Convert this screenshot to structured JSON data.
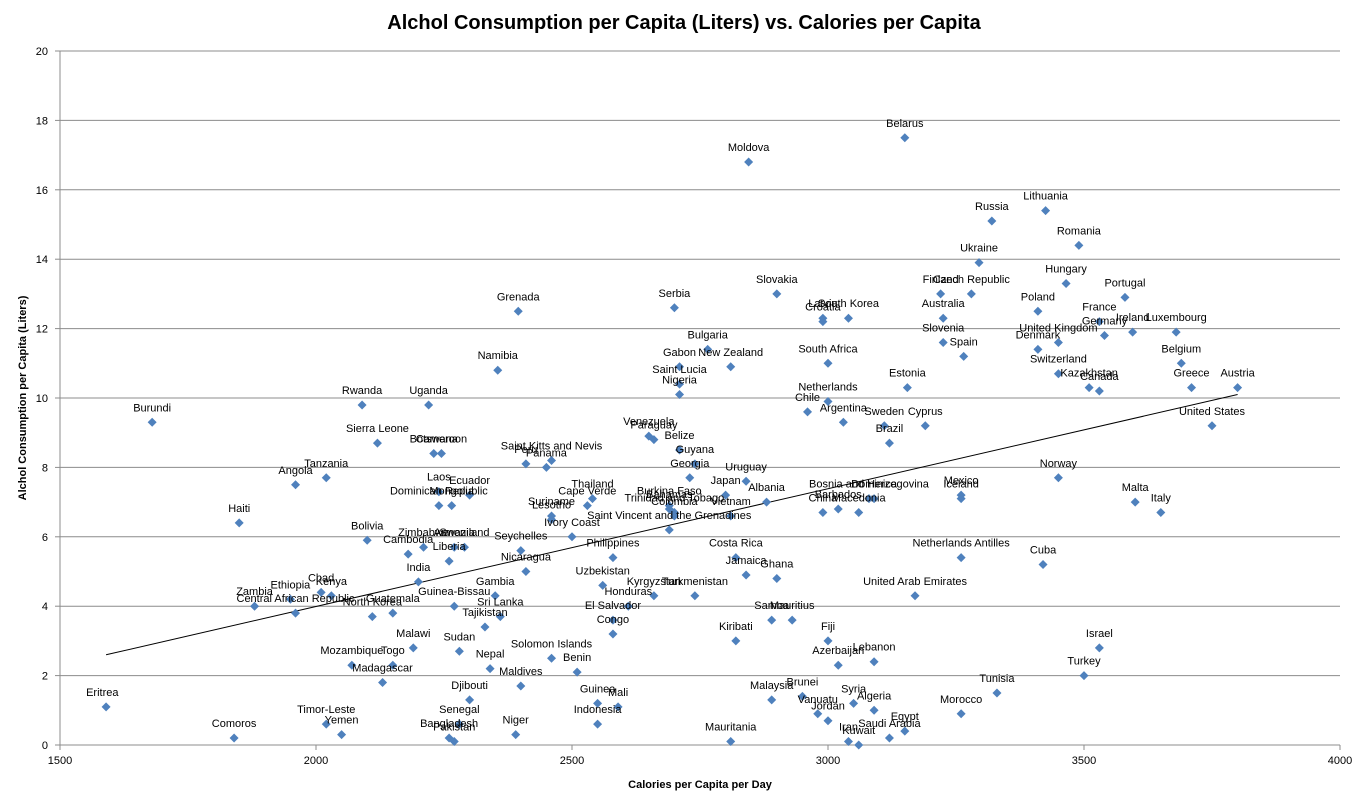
{
  "chart_data": {
    "type": "scatter",
    "title": "Alchol Consumption per Capita (Liters) vs. Calories per Capita",
    "xlabel": "Calories per Capita per Day",
    "ylabel": "Alchol Consumption per Capita  (Liters)",
    "xlim": [
      1500,
      4000
    ],
    "ylim": [
      0,
      20
    ],
    "x_ticks": [
      1500,
      2000,
      2500,
      3000,
      3500,
      4000
    ],
    "y_ticks": [
      0,
      2,
      4,
      6,
      8,
      10,
      12,
      14,
      16,
      18,
      20
    ],
    "grid": "horizontal",
    "marker_color": "#4f81bd",
    "trendline": {
      "type": "linear",
      "x": [
        1590,
        3800
      ],
      "y": [
        2.6,
        10.1
      ]
    },
    "points": [
      {
        "label": "Belarus",
        "x": 3150,
        "y": 17.5
      },
      {
        "label": "Moldova",
        "x": 2845,
        "y": 16.8
      },
      {
        "label": "Lithuania",
        "x": 3425,
        "y": 15.4
      },
      {
        "label": "Russia",
        "x": 3320,
        "y": 15.1
      },
      {
        "label": "Romania",
        "x": 3490,
        "y": 14.4
      },
      {
        "label": "Ukraine",
        "x": 3295,
        "y": 13.9
      },
      {
        "label": "Hungary",
        "x": 3465,
        "y": 13.3
      },
      {
        "label": "Czech Republic",
        "x": 3280,
        "y": 13.0
      },
      {
        "label": "Finland",
        "x": 3220,
        "y": 13.0
      },
      {
        "label": "Portugal",
        "x": 3580,
        "y": 12.9
      },
      {
        "label": "Slovakia",
        "x": 2900,
        "y": 13.0
      },
      {
        "label": "Serbia",
        "x": 2700,
        "y": 12.6
      },
      {
        "label": "Grenada",
        "x": 2395,
        "y": 12.5
      },
      {
        "label": "Poland",
        "x": 3410,
        "y": 12.5
      },
      {
        "label": "Australia",
        "x": 3225,
        "y": 12.3
      },
      {
        "label": "South Korea",
        "x": 3040,
        "y": 12.3
      },
      {
        "label": "Latvia",
        "x": 2990,
        "y": 12.3
      },
      {
        "label": "Croatia",
        "x": 2990,
        "y": 12.2
      },
      {
        "label": "United Kingdom",
        "x": 3450,
        "y": 11.6
      },
      {
        "label": "France",
        "x": 3530,
        "y": 12.2
      },
      {
        "label": "Ireland",
        "x": 3595,
        "y": 11.9
      },
      {
        "label": "Luxembourg",
        "x": 3680,
        "y": 11.9
      },
      {
        "label": "Slovenia",
        "x": 3225,
        "y": 11.6
      },
      {
        "label": "Spain",
        "x": 3265,
        "y": 11.2
      },
      {
        "label": "Denmark",
        "x": 3410,
        "y": 11.4
      },
      {
        "label": "Germany",
        "x": 3540,
        "y": 11.8
      },
      {
        "label": "Belgium",
        "x": 3690,
        "y": 11.0
      },
      {
        "label": "Bulgaria",
        "x": 2765,
        "y": 11.4
      },
      {
        "label": "New Zealand",
        "x": 2810,
        "y": 10.9
      },
      {
        "label": "South Africa",
        "x": 3000,
        "y": 11.0
      },
      {
        "label": "Gabon",
        "x": 2710,
        "y": 10.9
      },
      {
        "label": "Namibia",
        "x": 2355,
        "y": 10.8
      },
      {
        "label": "Saint Lucia",
        "x": 2710,
        "y": 10.4
      },
      {
        "label": "Nigeria",
        "x": 2710,
        "y": 10.1
      },
      {
        "label": "Switzerland",
        "x": 3450,
        "y": 10.7
      },
      {
        "label": "Estonia",
        "x": 3155,
        "y": 10.3
      },
      {
        "label": "Kazakhstan",
        "x": 3510,
        "y": 10.3
      },
      {
        "label": "Canada",
        "x": 3530,
        "y": 10.2
      },
      {
        "label": "Greece",
        "x": 3710,
        "y": 10.3
      },
      {
        "label": "Austria",
        "x": 3800,
        "y": 10.3
      },
      {
        "label": "Netherlands",
        "x": 3000,
        "y": 9.9
      },
      {
        "label": "Rwanda",
        "x": 2090,
        "y": 9.8
      },
      {
        "label": "Uganda",
        "x": 2220,
        "y": 9.8
      },
      {
        "label": "Burundi",
        "x": 1680,
        "y": 9.3
      },
      {
        "label": "Chile",
        "x": 2960,
        "y": 9.6
      },
      {
        "label": "Sweden",
        "x": 3110,
        "y": 9.2
      },
      {
        "label": "Cyprus",
        "x": 3190,
        "y": 9.2
      },
      {
        "label": "United States",
        "x": 3750,
        "y": 9.2
      },
      {
        "label": "Argentina",
        "x": 3030,
        "y": 9.3
      },
      {
        "label": "Venezuela",
        "x": 2650,
        "y": 8.9
      },
      {
        "label": "Paraguay",
        "x": 2660,
        "y": 8.8
      },
      {
        "label": "Belize",
        "x": 2710,
        "y": 8.5
      },
      {
        "label": "Brazil",
        "x": 3120,
        "y": 8.7
      },
      {
        "label": "Sierra Leone",
        "x": 2120,
        "y": 8.7
      },
      {
        "label": "Botswana",
        "x": 2230,
        "y": 8.4
      },
      {
        "label": "Cameroon",
        "x": 2245,
        "y": 8.4
      },
      {
        "label": "Saint Kitts and Nevis",
        "x": 2460,
        "y": 8.2
      },
      {
        "label": "Peru",
        "x": 2410,
        "y": 8.1
      },
      {
        "label": "Panama",
        "x": 2450,
        "y": 8.0
      },
      {
        "label": "Guyana",
        "x": 2740,
        "y": 8.1
      },
      {
        "label": "Georgia",
        "x": 2730,
        "y": 7.7
      },
      {
        "label": "Tanzania",
        "x": 2020,
        "y": 7.7
      },
      {
        "label": "Angola",
        "x": 1960,
        "y": 7.5
      },
      {
        "label": "Uruguay",
        "x": 2840,
        "y": 7.6
      },
      {
        "label": "Norway",
        "x": 3450,
        "y": 7.7
      },
      {
        "label": "Laos",
        "x": 2240,
        "y": 7.3
      },
      {
        "label": "Ecuador",
        "x": 2300,
        "y": 7.2
      },
      {
        "label": "Japan",
        "x": 2800,
        "y": 7.2
      },
      {
        "label": "Albania",
        "x": 2880,
        "y": 7.0
      },
      {
        "label": "Bosnia and Herzegovina",
        "x": 3080,
        "y": 7.1
      },
      {
        "label": "Dominica",
        "x": 3090,
        "y": 7.1
      },
      {
        "label": "Mexico",
        "x": 3260,
        "y": 7.2
      },
      {
        "label": "Iceland",
        "x": 3260,
        "y": 7.1
      },
      {
        "label": "Malta",
        "x": 3600,
        "y": 7.0
      },
      {
        "label": "Italy",
        "x": 3650,
        "y": 6.7
      },
      {
        "label": "Dominican Republic",
        "x": 2240,
        "y": 6.9
      },
      {
        "label": "Mongolia",
        "x": 2265,
        "y": 6.9
      },
      {
        "label": "Thailand",
        "x": 2540,
        "y": 7.1
      },
      {
        "label": "Burkina Faso",
        "x": 2690,
        "y": 6.9
      },
      {
        "label": "Cape Verde",
        "x": 2530,
        "y": 6.9
      },
      {
        "label": "Bahamas",
        "x": 2690,
        "y": 6.8
      },
      {
        "label": "Trinidad and Tobago",
        "x": 2700,
        "y": 6.7
      },
      {
        "label": "Suriname",
        "x": 2460,
        "y": 6.6
      },
      {
        "label": "Lesotho",
        "x": 2460,
        "y": 6.5
      },
      {
        "label": "Colombia",
        "x": 2700,
        "y": 6.6
      },
      {
        "label": "Vietnam",
        "x": 2810,
        "y": 6.6
      },
      {
        "label": "China",
        "x": 2990,
        "y": 6.7
      },
      {
        "label": "Barbados",
        "x": 3020,
        "y": 6.8
      },
      {
        "label": "Macedonia",
        "x": 3060,
        "y": 6.7
      },
      {
        "label": "Haiti",
        "x": 1850,
        "y": 6.4
      },
      {
        "label": "Ivory Coast",
        "x": 2500,
        "y": 6.0
      },
      {
        "label": "Saint Vincent and the Grenadines",
        "x": 2690,
        "y": 6.2
      },
      {
        "label": "Bolivia",
        "x": 2100,
        "y": 5.9
      },
      {
        "label": "Swaziland",
        "x": 2290,
        "y": 5.7
      },
      {
        "label": "Zimbabwe",
        "x": 2210,
        "y": 5.7
      },
      {
        "label": "Armenia",
        "x": 2270,
        "y": 5.7
      },
      {
        "label": "Seychelles",
        "x": 2400,
        "y": 5.6
      },
      {
        "label": "Philippines",
        "x": 2580,
        "y": 5.4
      },
      {
        "label": "Costa Rica",
        "x": 2820,
        "y": 5.4
      },
      {
        "label": "Netherlands Antilles",
        "x": 3260,
        "y": 5.4
      },
      {
        "label": "Cuba",
        "x": 3420,
        "y": 5.2
      },
      {
        "label": "Cambodia",
        "x": 2180,
        "y": 5.5
      },
      {
        "label": "Liberia",
        "x": 2260,
        "y": 5.3
      },
      {
        "label": "Nicaragua",
        "x": 2410,
        "y": 5.0
      },
      {
        "label": "Jamaica",
        "x": 2840,
        "y": 4.9
      },
      {
        "label": "Ghana",
        "x": 2900,
        "y": 4.8
      },
      {
        "label": "Uzbekistan",
        "x": 2560,
        "y": 4.6
      },
      {
        "label": "Chad",
        "x": 2010,
        "y": 4.4
      },
      {
        "label": "Ethiopia",
        "x": 1950,
        "y": 4.2
      },
      {
        "label": "Kenya",
        "x": 2030,
        "y": 4.3
      },
      {
        "label": "India",
        "x": 2200,
        "y": 4.7
      },
      {
        "label": "Zambia",
        "x": 1880,
        "y": 4.0
      },
      {
        "label": "Guinea-Bissau",
        "x": 2270,
        "y": 4.0
      },
      {
        "label": "Central African Republic",
        "x": 1960,
        "y": 3.8
      },
      {
        "label": "Guatemala",
        "x": 2150,
        "y": 3.8
      },
      {
        "label": "North Korea",
        "x": 2110,
        "y": 3.7
      },
      {
        "label": "Gambia",
        "x": 2350,
        "y": 4.3
      },
      {
        "label": "Sri Lanka",
        "x": 2360,
        "y": 3.7
      },
      {
        "label": "Honduras",
        "x": 2610,
        "y": 4.0
      },
      {
        "label": "Kyrgyzstan",
        "x": 2660,
        "y": 4.3
      },
      {
        "label": "Turkmenistan",
        "x": 2740,
        "y": 4.3
      },
      {
        "label": "Samoa",
        "x": 2890,
        "y": 3.6
      },
      {
        "label": "Mauritius",
        "x": 2930,
        "y": 3.6
      },
      {
        "label": "United Arab Emirates",
        "x": 3170,
        "y": 4.3
      },
      {
        "label": "El Salvador",
        "x": 2580,
        "y": 3.6
      },
      {
        "label": "Congo",
        "x": 2580,
        "y": 3.2
      },
      {
        "label": "Tajikistan",
        "x": 2330,
        "y": 3.4
      },
      {
        "label": "Kiribati",
        "x": 2820,
        "y": 3.0
      },
      {
        "label": "Fiji",
        "x": 3000,
        "y": 3.0
      },
      {
        "label": "Israel",
        "x": 3530,
        "y": 2.8
      },
      {
        "label": "Malawi",
        "x": 2190,
        "y": 2.8
      },
      {
        "label": "Sudan",
        "x": 2280,
        "y": 2.7
      },
      {
        "label": "Mozambique",
        "x": 2070,
        "y": 2.3
      },
      {
        "label": "Togo",
        "x": 2150,
        "y": 2.3
      },
      {
        "label": "Nepal",
        "x": 2340,
        "y": 2.2
      },
      {
        "label": "Solomon Islands",
        "x": 2460,
        "y": 2.5
      },
      {
        "label": "Benin",
        "x": 2510,
        "y": 2.1
      },
      {
        "label": "Azerbaijan",
        "x": 3020,
        "y": 2.3
      },
      {
        "label": "Lebanon",
        "x": 3090,
        "y": 2.4
      },
      {
        "label": "Turkey",
        "x": 3500,
        "y": 2.0
      },
      {
        "label": "Madagascar",
        "x": 2130,
        "y": 1.8
      },
      {
        "label": "Djibouti",
        "x": 2300,
        "y": 1.3
      },
      {
        "label": "Maldives",
        "x": 2400,
        "y": 1.7
      },
      {
        "label": "Mali",
        "x": 2590,
        "y": 1.1
      },
      {
        "label": "Guinea",
        "x": 2550,
        "y": 1.2
      },
      {
        "label": "Indonesia",
        "x": 2550,
        "y": 0.6
      },
      {
        "label": "Malaysia",
        "x": 2890,
        "y": 1.3
      },
      {
        "label": "Brunei",
        "x": 2950,
        "y": 1.4
      },
      {
        "label": "Syria",
        "x": 3050,
        "y": 1.2
      },
      {
        "label": "Algeria",
        "x": 3090,
        "y": 1.0
      },
      {
        "label": "Tunisia",
        "x": 3330,
        "y": 1.5
      },
      {
        "label": "Morocco",
        "x": 3260,
        "y": 0.9
      },
      {
        "label": "Eritrea",
        "x": 1590,
        "y": 1.1
      },
      {
        "label": "Timor-Leste",
        "x": 2020,
        "y": 0.6
      },
      {
        "label": "Yemen",
        "x": 2050,
        "y": 0.3
      },
      {
        "label": "Comoros",
        "x": 1840,
        "y": 0.2
      },
      {
        "label": "Senegal",
        "x": 2280,
        "y": 0.6
      },
      {
        "label": "Bangladesh",
        "x": 2260,
        "y": 0.2
      },
      {
        "label": "Pakistan",
        "x": 2270,
        "y": 0.1
      },
      {
        "label": "Niger",
        "x": 2390,
        "y": 0.3
      },
      {
        "label": "Vanuatu",
        "x": 2980,
        "y": 0.9
      },
      {
        "label": "Egypt",
        "x": 3150,
        "y": 0.4
      },
      {
        "label": "Mauritania",
        "x": 2810,
        "y": 0.1
      },
      {
        "label": "Jordan",
        "x": 3000,
        "y": 0.7
      },
      {
        "label": "Iran",
        "x": 3040,
        "y": 0.1
      },
      {
        "label": "Kuwait",
        "x": 3060,
        "y": 0.0
      },
      {
        "label": "Saudi Arabia",
        "x": 3120,
        "y": 0.2
      }
    ]
  }
}
